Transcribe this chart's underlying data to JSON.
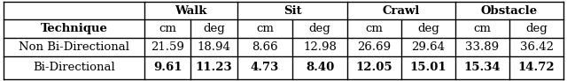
{
  "header_row1_labels": [
    "Walk",
    "Sit",
    "Crawl",
    "Obstacle"
  ],
  "header_row2": [
    "Technique",
    "cm",
    "deg",
    "cm",
    "deg",
    "cm",
    "deg",
    "cm",
    "deg"
  ],
  "row1": [
    "Non Bi-Directional",
    "21.59",
    "18.94",
    "8.66",
    "12.98",
    "26.69",
    "29.64",
    "33.89",
    "36.42"
  ],
  "row2_label": "Bi-Directional",
  "row2_bold": [
    "9.61",
    "11.23",
    "4.73",
    "8.40",
    "12.05",
    "15.01",
    "15.34",
    "14.72"
  ],
  "bg_color": "#ffffff",
  "text_color": "#000000",
  "font_size": 9.5
}
